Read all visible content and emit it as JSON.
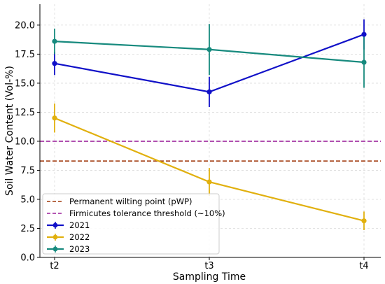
{
  "chart_data": {
    "type": "line",
    "title": "",
    "xlabel": "Sampling Time",
    "ylabel": "Soil Water Content (Vol-%)",
    "categories": [
      "t2",
      "t3",
      "t4"
    ],
    "ylim": [
      0,
      21.8
    ],
    "yticks": [
      0.0,
      2.5,
      5.0,
      7.5,
      10.0,
      12.5,
      15.0,
      17.5,
      20.0
    ],
    "ytick_labels": [
      "0.0",
      "2.5",
      "5.0",
      "7.5",
      "10.0",
      "12.5",
      "15.0",
      "17.5",
      "20.0"
    ],
    "grid": true,
    "legend_position": "lower-left",
    "series": [
      {
        "name": "2021",
        "color": "#1010c8",
        "values": [
          16.7,
          14.25,
          19.2
        ],
        "error": [
          1.0,
          1.3,
          1.3
        ]
      },
      {
        "name": "2022",
        "color": "#e1b00e",
        "values": [
          12.0,
          6.5,
          3.15
        ],
        "error": [
          1.25,
          1.2,
          0.8
        ]
      },
      {
        "name": "2023",
        "color": "#178a7e",
        "values": [
          18.6,
          17.9,
          16.8
        ],
        "error": [
          1.1,
          2.2,
          2.2
        ]
      }
    ],
    "reference_lines": [
      {
        "name": "Permanent wilting point (pWP)",
        "value": 8.3,
        "color": "#a0380c",
        "style": "dashed"
      },
      {
        "name": "Firmicutes tolerance threshold (~10%)",
        "value": 10.0,
        "color": "#9c1f9a",
        "style": "dashed"
      }
    ]
  }
}
